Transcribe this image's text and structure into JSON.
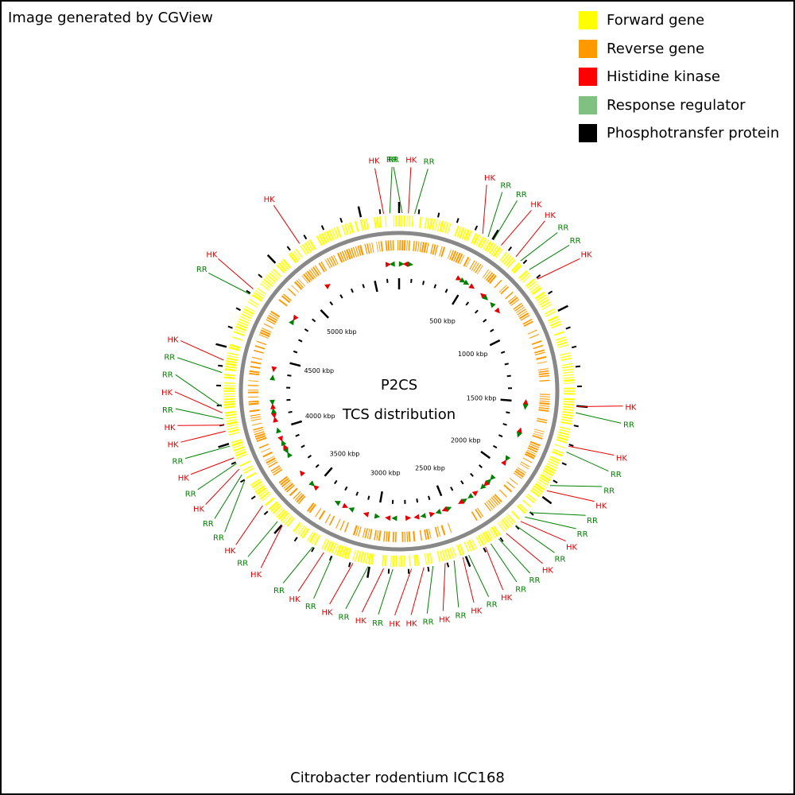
{
  "credit": "Image generated by CGView",
  "legend": [
    {
      "label": "Forward gene",
      "color": "#ffff00"
    },
    {
      "label": "Reverse gene",
      "color": "#ff9900"
    },
    {
      "label": "Histidine kinase",
      "color": "#ff0000"
    },
    {
      "label": "Response regulator",
      "color": "#80c080"
    },
    {
      "label": "Phosphotransfer protein",
      "color": "#000000"
    }
  ],
  "center_title_1": "P2CS",
  "center_title_2": "TCS distribution",
  "footer": "Citrobacter rodentium ICC168",
  "colors": {
    "hk": "#e60000",
    "rr": "#008000",
    "forward": "#ffff00",
    "reverse": "#ff9900",
    "backbone": "#888888"
  },
  "genome": {
    "tick_labels": [
      "500 kbp",
      "1000 kbp",
      "1500 kbp",
      "2000 kbp",
      "2500 kbp",
      "3000 kbp",
      "3500 kbp",
      "4000 kbp",
      "4500 kbp",
      "5000 kbp"
    ],
    "tick_angles_deg": [
      31.6,
      63.2,
      94.8,
      126.4,
      158.0,
      189.6,
      221.2,
      252.8,
      284.4,
      316.0
    ],
    "features": [
      {
        "label": "HK",
        "type": "HK",
        "angle": 355,
        "inner": "cw"
      },
      {
        "label": "RR",
        "type": "RR",
        "angle": 357,
        "inner": "ccw"
      },
      {
        "label": "RR",
        "type": "RR",
        "angle": 1,
        "inner": "cw"
      },
      {
        "label": "HK",
        "type": "HK",
        "angle": 3,
        "inner": "ccw"
      },
      {
        "label": "RR",
        "type": "RR",
        "angle": 5,
        "inner": "cw"
      },
      {
        "label": "HK",
        "type": "HK",
        "angle": 28,
        "inner": "cw"
      },
      {
        "label": "RR",
        "type": "RR",
        "angle": 30,
        "inner": "cw"
      },
      {
        "label": "RR",
        "type": "RR",
        "angle": 32,
        "inner": "cw"
      },
      {
        "label": "HK",
        "type": "HK",
        "angle": 35,
        "inner": "cw"
      },
      {
        "label": "HK",
        "type": "HK",
        "angle": 41,
        "inner": "ccw"
      },
      {
        "label": "RR",
        "type": "RR",
        "angle": 43,
        "inner": "cw"
      },
      {
        "label": "RR",
        "type": "RR",
        "angle": 47,
        "inner": "ccw"
      },
      {
        "label": "HK",
        "type": "HK",
        "angle": 51,
        "inner": "cw"
      },
      {
        "label": "HK",
        "type": "HK",
        "angle": 95,
        "inner": "ccw"
      },
      {
        "label": "RR",
        "type": "RR",
        "angle": 97,
        "inner": "cw"
      },
      {
        "label": "HK",
        "type": "HK",
        "angle": 108,
        "inner": "ccw"
      },
      {
        "label": "RR",
        "type": "RR",
        "angle": 110,
        "inner": "cw"
      },
      {
        "label": "RR",
        "type": "RR",
        "angle": 122,
        "inner": "cw"
      },
      {
        "label": "HK",
        "type": "HK",
        "angle": 124,
        "inner": "ccw"
      },
      {
        "label": "RR",
        "type": "RR",
        "angle": 133,
        "inner": "cw"
      },
      {
        "label": "RR",
        "type": "RR",
        "angle": 135,
        "inner": "ccw"
      },
      {
        "label": "HK",
        "type": "HK",
        "angle": 137,
        "inner": "cw"
      },
      {
        "label": "RR",
        "type": "RR",
        "angle": 139,
        "inner": "cw"
      },
      {
        "label": "HK",
        "type": "HK",
        "angle": 143,
        "inner": "ccw"
      },
      {
        "label": "RR",
        "type": "RR",
        "angle": 146,
        "inner": "cw"
      },
      {
        "label": "RR",
        "type": "RR",
        "angle": 149,
        "inner": "ccw"
      },
      {
        "label": "HK",
        "type": "HK",
        "angle": 151,
        "inner": "cw"
      },
      {
        "label": "RR",
        "type": "RR",
        "angle": 157,
        "inner": "ccw"
      },
      {
        "label": "HK",
        "type": "HK",
        "angle": 159,
        "inner": "cw"
      },
      {
        "label": "RR",
        "type": "RR",
        "angle": 162,
        "inner": "cw"
      },
      {
        "label": "HK",
        "type": "HK",
        "angle": 165,
        "inner": "ccw"
      },
      {
        "label": "RR",
        "type": "RR",
        "angle": 169,
        "inner": "cw"
      },
      {
        "label": "HK",
        "type": "HK",
        "angle": 172,
        "inner": "cw"
      },
      {
        "label": "HK",
        "type": "HK",
        "angle": 176,
        "inner": "ccw"
      },
      {
        "label": "RR",
        "type": "RR",
        "angle": 182,
        "inner": "cw"
      },
      {
        "label": "HK",
        "type": "HK",
        "angle": 185,
        "inner": "cw"
      },
      {
        "label": "RR",
        "type": "RR",
        "angle": 190,
        "inner": "ccw"
      },
      {
        "label": "HK",
        "type": "HK",
        "angle": 195,
        "inner": "cw"
      },
      {
        "label": "RR",
        "type": "RR",
        "angle": 202,
        "inner": "cw"
      },
      {
        "label": "HK",
        "type": "HK",
        "angle": 205,
        "inner": "ccw"
      },
      {
        "label": "RR",
        "type": "RR",
        "angle": 209,
        "inner": "cw"
      },
      {
        "label": "HK",
        "type": "HK",
        "angle": 221,
        "inner": "cw"
      },
      {
        "label": "RR",
        "type": "RR",
        "angle": 223,
        "inner": "ccw"
      },
      {
        "label": "HK",
        "type": "HK",
        "angle": 230,
        "inner": "cw"
      },
      {
        "label": "RR",
        "type": "RR",
        "angle": 240,
        "inner": "cw"
      },
      {
        "label": "RR",
        "type": "RR",
        "angle": 242,
        "inner": "ccw"
      },
      {
        "label": "HK",
        "type": "HK",
        "angle": 244,
        "inner": "cw"
      },
      {
        "label": "RR",
        "type": "RR",
        "angle": 246,
        "inner": "cw"
      },
      {
        "label": "HK",
        "type": "HK",
        "angle": 248,
        "inner": "ccw"
      },
      {
        "label": "RR",
        "type": "RR",
        "angle": 252,
        "inner": "cw"
      },
      {
        "label": "HK",
        "type": "HK",
        "angle": 257,
        "inner": "cw"
      },
      {
        "label": "HK",
        "type": "HK",
        "angle": 259,
        "inner": "ccw"
      },
      {
        "label": "RR",
        "type": "RR",
        "angle": 261,
        "inner": "cw"
      },
      {
        "label": "HK",
        "type": "HK",
        "angle": 263,
        "inner": "cw"
      },
      {
        "label": "RR",
        "type": "RR",
        "angle": 265,
        "inner": "ccw"
      },
      {
        "label": "RR",
        "type": "RR",
        "angle": 276,
        "inner": "cw"
      },
      {
        "label": "HK",
        "type": "HK",
        "angle": 280,
        "inner": "ccw"
      },
      {
        "label": "RR",
        "type": "RR",
        "angle": 303,
        "inner": "cw"
      },
      {
        "label": "HK",
        "type": "HK",
        "angle": 305,
        "inner": "ccw"
      },
      {
        "label": "HK",
        "type": "HK",
        "angle": 326,
        "inner": "cw"
      }
    ]
  }
}
